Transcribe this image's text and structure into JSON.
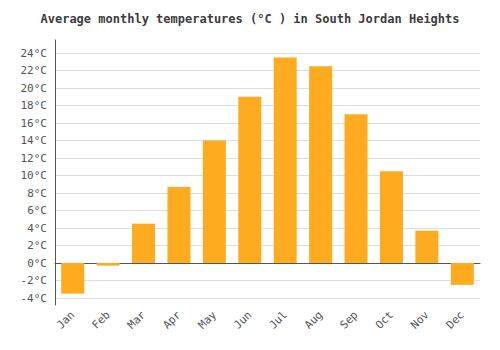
{
  "chart_data": {
    "type": "bar",
    "title": "Average monthly temperatures (°C ) in South Jordan Heights",
    "categories": [
      "Jan",
      "Feb",
      "Mar",
      "Apr",
      "May",
      "Jun",
      "Jul",
      "Aug",
      "Sep",
      "Oct",
      "Nov",
      "Dec"
    ],
    "values": [
      -3.5,
      -0.3,
      4.5,
      8.7,
      14.0,
      19.0,
      23.5,
      22.5,
      17.0,
      10.5,
      3.7,
      -2.5
    ],
    "color": "#FFAB20",
    "ylim": [
      -4.8,
      25.5
    ],
    "yticks": [
      {
        "value": -4,
        "label": "-4°C"
      },
      {
        "value": -2,
        "label": "-2°C"
      },
      {
        "value": 0,
        "label": "0°C"
      },
      {
        "value": 2,
        "label": "2°C"
      },
      {
        "value": 4,
        "label": "4°C"
      },
      {
        "value": 6,
        "label": "6°C"
      },
      {
        "value": 8,
        "label": "8°C"
      },
      {
        "value": 10,
        "label": "10°C"
      },
      {
        "value": 12,
        "label": "12°C"
      },
      {
        "value": 14,
        "label": "14°C"
      },
      {
        "value": 16,
        "label": "16°C"
      },
      {
        "value": 18,
        "label": "18°C"
      },
      {
        "value": 20,
        "label": "20°C"
      },
      {
        "value": 22,
        "label": "22°C"
      },
      {
        "value": 24,
        "label": "24°C"
      }
    ],
    "grid": true
  }
}
